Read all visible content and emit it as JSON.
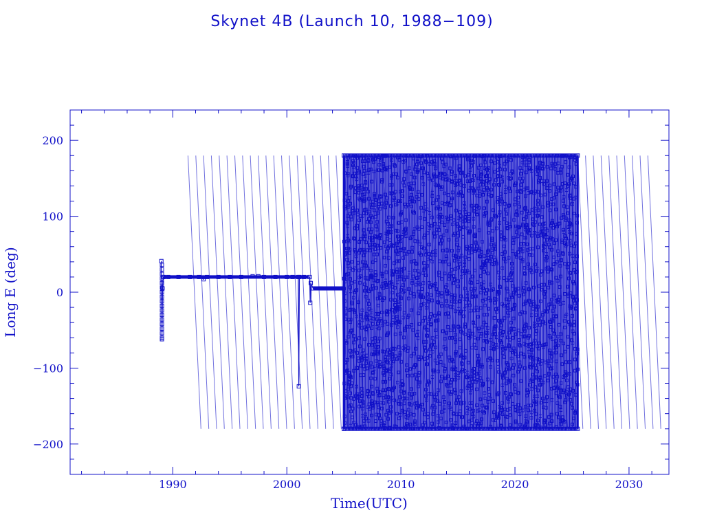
{
  "colors": {
    "ink": "#1010c8",
    "background": "#ffffff"
  },
  "chart_data": {
    "type": "line",
    "title": "Skynet 4B (Launch 10, 1988−109)",
    "xlabel": "Time(UTC)",
    "ylabel": "Long E (deg)",
    "xlim": [
      1981,
      2033.5
    ],
    "ylim": [
      -240,
      240
    ],
    "x_ticks": [
      1990,
      2000,
      2010,
      2020,
      2030
    ],
    "x_tick_labels": [
      "1990",
      "2000",
      "2010",
      "2020",
      "2030"
    ],
    "y_ticks": [
      -200,
      -100,
      0,
      100,
      200
    ],
    "y_tick_labels": [
      "−200",
      "−100",
      "0",
      "100",
      "200"
    ],
    "grid": false,
    "legend": "none",
    "marker": "square",
    "series": [
      {
        "x": [
          1989.0,
          1989.05,
          1989.1,
          1989.15,
          1989.2,
          1989.6,
          1990.5,
          1991.5,
          1992.3,
          1992.7,
          1993.0,
          1994.0,
          1995.0,
          1996.0,
          1997.0,
          1997.5,
          1998.0,
          1999.0,
          2000.0,
          2000.5,
          2001.0,
          2001.05,
          2001.1,
          2001.5,
          2002.0,
          2002.05,
          2002.1,
          2002.3,
          2003.0,
          2004.0,
          2004.9,
          2005.0
        ],
        "y": [
          41,
          -62,
          5,
          20,
          20,
          20,
          20,
          20,
          20,
          17,
          20,
          20,
          20,
          20,
          21,
          21,
          20,
          20,
          20,
          20,
          20,
          -124,
          20,
          20,
          20,
          -14,
          12,
          5,
          5,
          5,
          5,
          -180
        ]
      },
      {
        "description_free": true,
        "x_start": 2005.0,
        "x_end": 2025.5,
        "y_min": -180,
        "y_max": 180,
        "drift_deg_per_day": 2.7
      }
    ]
  }
}
